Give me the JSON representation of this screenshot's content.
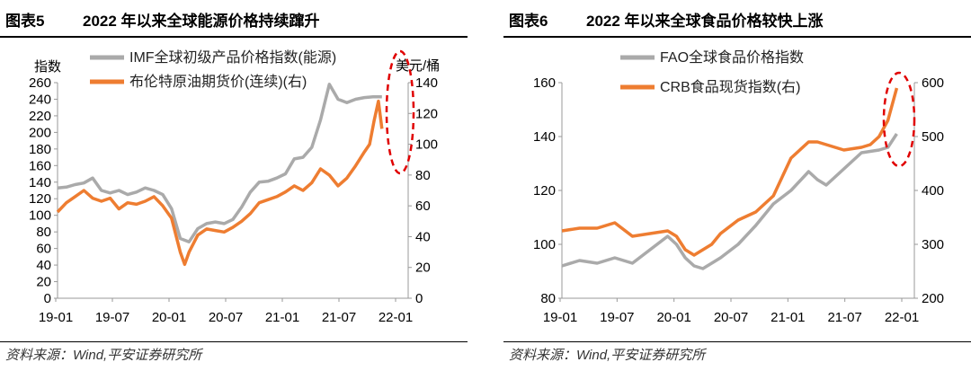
{
  "source_note": "资料来源：Wind,平安证券研究所",
  "chart_data": [
    {
      "type": "line",
      "figure_label": "图表5",
      "title": "2022 年以来全球能源价格持续蹿升",
      "ylabel_left": "指数",
      "ylabel_right": "美元/桶",
      "ylim_left": [
        0,
        260
      ],
      "ylim_right": [
        0,
        140
      ],
      "yticks_left": [
        0,
        20,
        40,
        60,
        80,
        100,
        120,
        140,
        160,
        180,
        200,
        220,
        240,
        260
      ],
      "yticks_right": [
        0,
        20,
        40,
        60,
        80,
        100,
        120,
        140
      ],
      "xlim": [
        0,
        40
      ],
      "xticks": [
        "19-01",
        "19-07",
        "20-01",
        "20-07",
        "21-01",
        "21-07",
        "22-01"
      ],
      "annotation": "highlight-2022",
      "series": [
        {
          "name": "IMF全球初级产品价格指数(能源)",
          "axis": "left",
          "color": "#aaaaaa",
          "x": [
            0,
            1,
            2,
            3,
            4,
            5,
            6,
            7,
            8,
            9,
            10,
            11,
            12,
            13,
            14,
            15,
            16,
            17,
            18,
            19,
            20,
            21,
            22,
            23,
            24,
            25,
            26,
            27,
            28,
            29,
            30,
            31,
            32,
            33,
            34,
            35,
            36,
            37
          ],
          "values": [
            133,
            134,
            137,
            139,
            145,
            130,
            127,
            130,
            125,
            128,
            133,
            130,
            125,
            108,
            72,
            68,
            84,
            90,
            92,
            90,
            95,
            110,
            128,
            140,
            141,
            145,
            150,
            168,
            170,
            182,
            215,
            258,
            240,
            236,
            240,
            242,
            243,
            243
          ]
        },
        {
          "name": "布伦特原油期货价(连续)(右)",
          "axis": "right",
          "color": "#ee7d31",
          "x": [
            0,
            1,
            2,
            3,
            4,
            5,
            6,
            7,
            8,
            9,
            10,
            11,
            12,
            13,
            14,
            14.5,
            15,
            16,
            17,
            18,
            19,
            20,
            21,
            22,
            23,
            24,
            25,
            26,
            27,
            28,
            29,
            30,
            31,
            32,
            33,
            34,
            35,
            35.6,
            36.1,
            36.6,
            37
          ],
          "values": [
            56,
            62,
            66,
            70,
            65,
            63,
            65,
            58,
            62,
            61,
            63,
            66,
            60,
            52,
            30,
            22,
            30,
            41,
            45,
            44,
            43,
            46,
            50,
            55,
            62,
            64,
            66,
            69,
            73,
            70,
            75,
            84,
            80,
            73,
            78,
            86,
            95,
            100,
            115,
            128,
            110
          ]
        }
      ]
    },
    {
      "type": "line",
      "figure_label": "图表6",
      "title": "2022 年以来全球食品价格较快上涨",
      "ylim_left": [
        80,
        160
      ],
      "ylim_right": [
        200,
        600
      ],
      "yticks_left": [
        80,
        100,
        120,
        140,
        160
      ],
      "yticks_right": [
        200,
        300,
        400,
        500,
        600
      ],
      "xlim": [
        0,
        40
      ],
      "xticks": [
        "19-01",
        "19-07",
        "20-01",
        "20-07",
        "21-01",
        "21-07",
        "22-01"
      ],
      "annotation": "highlight-2022",
      "series": [
        {
          "name": "FAO全球食品价格指数",
          "axis": "left",
          "color": "#aaaaaa",
          "x": [
            0,
            2,
            4,
            6,
            8,
            10,
            12,
            13,
            14,
            15,
            16,
            18,
            20,
            22,
            24,
            26,
            28,
            29,
            30,
            32,
            34,
            36,
            37,
            38
          ],
          "values": [
            92,
            94,
            93,
            95,
            93,
            98,
            103,
            100,
            95,
            92,
            91,
            95,
            100,
            107,
            115,
            120,
            127,
            124,
            122,
            128,
            134,
            135,
            136,
            141
          ]
        },
        {
          "name": "CRB食品现货指数(右)",
          "axis": "right",
          "color": "#ee7d31",
          "x": [
            0,
            2,
            4,
            6,
            8,
            10,
            12,
            13,
            14,
            15,
            16,
            17,
            18,
            20,
            22,
            24,
            26,
            28,
            29,
            30,
            32,
            34,
            35,
            36,
            37,
            38
          ],
          "values": [
            325,
            330,
            330,
            340,
            315,
            320,
            325,
            315,
            290,
            280,
            290,
            300,
            320,
            345,
            360,
            390,
            460,
            490,
            490,
            485,
            475,
            480,
            485,
            500,
            530,
            590
          ]
        }
      ]
    }
  ]
}
